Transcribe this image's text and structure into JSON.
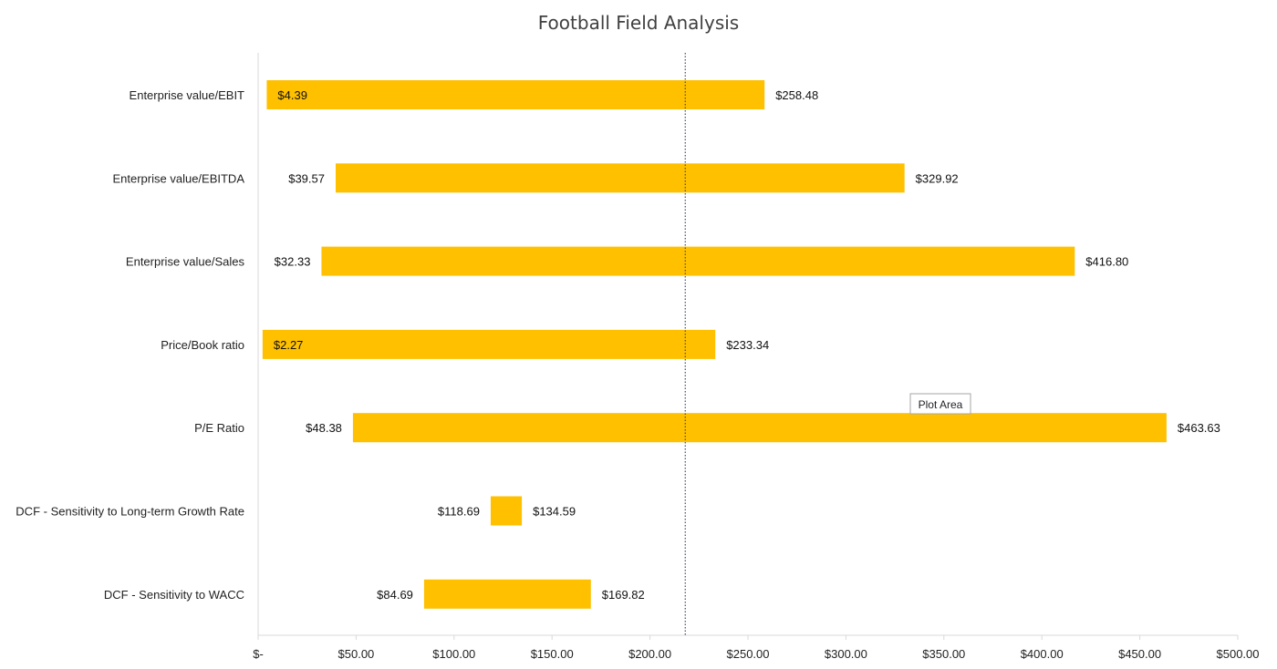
{
  "chart_data": {
    "type": "bar",
    "orientation": "horizontal-floating",
    "title": "Football Field Analysis",
    "categories": [
      "Enterprise value/EBIT",
      "Enterprise value/EBITDA",
      "Enterprise value/Sales",
      "Price/Book ratio",
      "P/E Ratio",
      "DCF - Sensitivity to Long-term Growth Rate",
      "DCF - Sensitivity to WACC"
    ],
    "low": [
      4.39,
      39.57,
      32.33,
      2.27,
      48.38,
      118.69,
      84.69
    ],
    "high": [
      258.48,
      329.92,
      416.8,
      233.34,
      463.63,
      134.59,
      169.82
    ],
    "low_labels": [
      "$4.39",
      "$39.57",
      "$32.33",
      "$2.27",
      "$48.38",
      "$118.69",
      "$84.69"
    ],
    "high_labels": [
      "$258.48",
      "$329.92",
      "$416.80",
      "$233.34",
      "$463.63",
      "$134.59",
      "$169.82"
    ],
    "xlim": [
      0,
      500
    ],
    "xticks": [
      0,
      50,
      100,
      150,
      200,
      250,
      300,
      350,
      400,
      450,
      500
    ],
    "xtick_labels": [
      "$-",
      "$50.00",
      "$100.00",
      "$150.00",
      "$200.00",
      "$250.00",
      "$300.00",
      "$350.00",
      "$400.00",
      "$450.00",
      "$500.00"
    ],
    "reference_line_value": 218,
    "bar_color": "#FFC000",
    "grid": false,
    "legend": "none"
  },
  "tooltip": {
    "text": "Plot Area"
  }
}
